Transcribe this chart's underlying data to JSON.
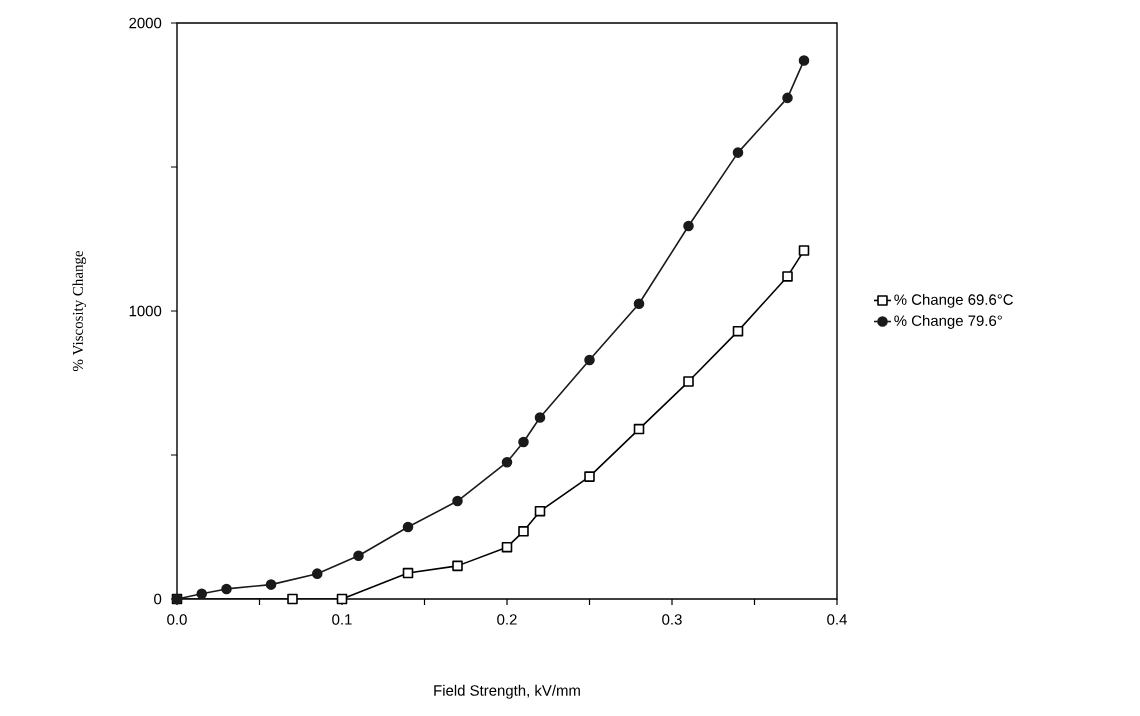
{
  "chart_data": {
    "type": "line",
    "xlabel": "Field Strength, kV/mm",
    "ylabel": "% Viscosity Change",
    "xlim": [
      0,
      0.4
    ],
    "ylim": [
      0,
      2000
    ],
    "xticks": [
      {
        "value": 0,
        "label": "0.0"
      },
      {
        "value": 0.05,
        "label": null
      },
      {
        "value": 0.1,
        "label": "0.1"
      },
      {
        "value": 0.15,
        "label": null
      },
      {
        "value": 0.2,
        "label": "0.2"
      },
      {
        "value": 0.25,
        "label": null
      },
      {
        "value": 0.3,
        "label": "0.3"
      },
      {
        "value": 0.35,
        "label": null
      },
      {
        "value": 0.4,
        "label": "0.4"
      }
    ],
    "yticks": [
      0,
      {
        "value": 500,
        "label": null
      },
      1000,
      {
        "value": 1500,
        "label": null
      },
      2000
    ],
    "grid": false,
    "legend": "right",
    "line_style": "solid",
    "series": [
      {
        "name": "% Change 69.6°C",
        "color": "#000000",
        "marker": "square",
        "x": [
          0,
          0.07,
          0.1,
          0.14,
          0.17,
          0.2,
          0.21,
          0.22,
          0.25,
          0.28,
          0.31,
          0.34,
          0.37,
          0.38
        ],
        "values": [
          0,
          0,
          0,
          90,
          115,
          180,
          235,
          305,
          425,
          590,
          755,
          930,
          1120,
          1210
        ]
      },
      {
        "name": "% Change 79.6°",
        "color": "#1a1a1a",
        "marker": "circle",
        "x": [
          0,
          0.015,
          0.03,
          0.057,
          0.085,
          0.11,
          0.14,
          0.17,
          0.2,
          0.21,
          0.22,
          0.25,
          0.28,
          0.31,
          0.34,
          0.37,
          0.38
        ],
        "values": [
          0,
          18,
          35,
          50,
          88,
          150,
          250,
          340,
          475,
          545,
          630,
          830,
          1025,
          1295,
          1550,
          1740,
          1870
        ]
      }
    ]
  }
}
